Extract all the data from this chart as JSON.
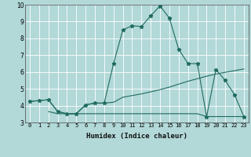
{
  "xlabel": "Humidex (Indice chaleur)",
  "bg_color": "#b2d8d8",
  "grid_color": "#ffffff",
  "line_color": "#1f6b5e",
  "xlim": [
    -0.5,
    23.5
  ],
  "ylim": [
    3,
    10
  ],
  "xticks": [
    0,
    1,
    2,
    3,
    4,
    5,
    6,
    7,
    8,
    9,
    10,
    11,
    12,
    13,
    14,
    15,
    16,
    17,
    18,
    19,
    20,
    21,
    22,
    23
  ],
  "yticks": [
    3,
    4,
    5,
    6,
    7,
    8,
    9,
    10
  ],
  "line1_x": [
    0,
    1,
    2,
    3,
    4,
    5,
    6,
    7,
    8,
    9,
    10,
    11,
    12,
    13,
    14,
    15,
    16,
    17,
    18,
    19,
    20,
    21,
    22,
    23
  ],
  "line1_y": [
    4.25,
    4.3,
    4.35,
    3.65,
    3.52,
    3.52,
    4.05,
    4.15,
    4.15,
    6.5,
    8.5,
    8.75,
    8.7,
    9.35,
    9.93,
    9.2,
    7.35,
    6.5,
    6.5,
    3.35,
    6.15,
    5.5,
    4.65,
    3.35
  ],
  "line2_x": [
    0,
    2,
    3,
    4,
    5,
    6,
    7,
    8,
    9,
    10,
    11,
    12,
    13,
    14,
    15,
    16,
    17,
    18,
    19,
    20,
    21,
    22,
    23
  ],
  "line2_y": [
    4.25,
    4.35,
    3.65,
    3.52,
    3.52,
    4.05,
    4.15,
    4.15,
    4.2,
    4.5,
    4.6,
    4.7,
    4.82,
    4.95,
    5.1,
    5.28,
    5.45,
    5.6,
    5.75,
    5.88,
    5.98,
    6.08,
    6.18
  ],
  "line3_x": [
    2,
    3,
    4,
    5,
    6,
    7,
    8,
    9,
    10,
    11,
    12,
    13,
    14,
    15,
    16,
    17,
    18,
    19,
    20,
    21,
    22,
    23
  ],
  "line3_y": [
    3.65,
    3.52,
    3.52,
    3.52,
    3.52,
    3.52,
    3.52,
    3.52,
    3.52,
    3.52,
    3.52,
    3.52,
    3.52,
    3.52,
    3.52,
    3.52,
    3.52,
    3.35,
    3.35,
    3.35,
    3.35,
    3.35
  ],
  "xlabel_fontsize": 6.5,
  "tick_fontsize": 5.0
}
